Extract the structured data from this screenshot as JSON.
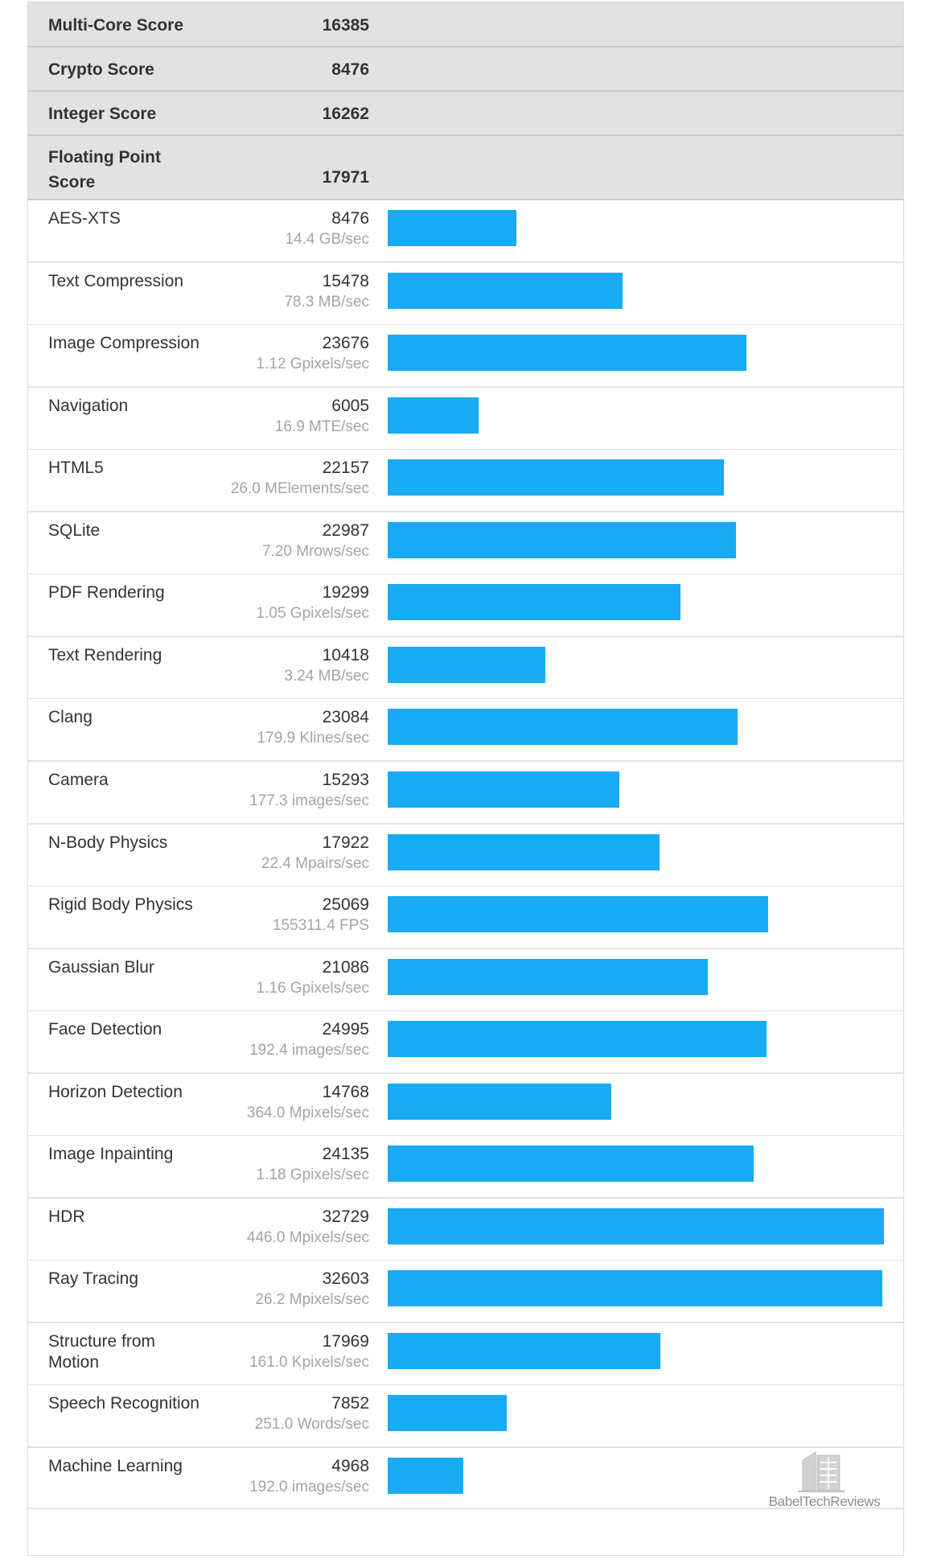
{
  "colors": {
    "bar": "#18aaf2",
    "header_bg": "#e2e2e2",
    "rate_text": "#a4a4a4"
  },
  "summary": [
    {
      "label": "Multi-Core Score",
      "value": "16385"
    },
    {
      "label": "Crypto Score",
      "value": "8476"
    },
    {
      "label": "Integer Score",
      "value": "16262"
    },
    {
      "label": "Floating Point Score",
      "value": "17971"
    }
  ],
  "benchmarks": [
    {
      "name": "AES-XTS",
      "score": "8476",
      "rate": "14.4 GB/sec"
    },
    {
      "name": "Text Compression",
      "score": "15478",
      "rate": "78.3 MB/sec"
    },
    {
      "name": "Image Compression",
      "score": "23676",
      "rate": "1.12 Gpixels/sec"
    },
    {
      "name": "Navigation",
      "score": "6005",
      "rate": "16.9 MTE/sec"
    },
    {
      "name": "HTML5",
      "score": "22157",
      "rate": "26.0 MElements/sec"
    },
    {
      "name": "SQLite",
      "score": "22987",
      "rate": "7.20 Mrows/sec"
    },
    {
      "name": "PDF Rendering",
      "score": "19299",
      "rate": "1.05 Gpixels/sec"
    },
    {
      "name": "Text Rendering",
      "score": "10418",
      "rate": "3.24 MB/sec"
    },
    {
      "name": "Clang",
      "score": "23084",
      "rate": "179.9 Klines/sec"
    },
    {
      "name": "Camera",
      "score": "15293",
      "rate": "177.3 images/sec"
    },
    {
      "name": "N-Body Physics",
      "score": "17922",
      "rate": "22.4 Mpairs/sec"
    },
    {
      "name": "Rigid Body Physics",
      "score": "25069",
      "rate": "155311.4 FPS"
    },
    {
      "name": "Gaussian Blur",
      "score": "21086",
      "rate": "1.16 Gpixels/sec"
    },
    {
      "name": "Face Detection",
      "score": "24995",
      "rate": "192.4 images/sec"
    },
    {
      "name": "Horizon Detection",
      "score": "14768",
      "rate": "364.0 Mpixels/sec"
    },
    {
      "name": "Image Inpainting",
      "score": "24135",
      "rate": "1.18 Gpixels/sec"
    },
    {
      "name": "HDR",
      "score": "32729",
      "rate": "446.0 Mpixels/sec"
    },
    {
      "name": "Ray Tracing",
      "score": "32603",
      "rate": "26.2 Mpixels/sec"
    },
    {
      "name": "Structure from Motion",
      "score": "17969",
      "rate": "161.0 Kpixels/sec"
    },
    {
      "name": "Speech Recognition",
      "score": "7852",
      "rate": "251.0 Words/sec"
    },
    {
      "name": "Machine Learning",
      "score": "4968",
      "rate": "192.0 images/sec"
    }
  ],
  "chart_data": {
    "type": "bar",
    "orientation": "horizontal",
    "categories": [
      "AES-XTS",
      "Text Compression",
      "Image Compression",
      "Navigation",
      "HTML5",
      "SQLite",
      "PDF Rendering",
      "Text Rendering",
      "Clang",
      "Camera",
      "N-Body Physics",
      "Rigid Body Physics",
      "Gaussian Blur",
      "Face Detection",
      "Horizon Detection",
      "Image Inpainting",
      "HDR",
      "Ray Tracing",
      "Structure from Motion",
      "Speech Recognition",
      "Machine Learning"
    ],
    "values": [
      8476,
      15478,
      23676,
      6005,
      22157,
      22987,
      19299,
      10418,
      23084,
      15293,
      17922,
      25069,
      21086,
      24995,
      14768,
      24135,
      32729,
      32603,
      17969,
      7852,
      4968
    ],
    "xlim": [
      0,
      32729
    ],
    "grid": false
  },
  "watermark": {
    "text": "BabelTechReviews"
  }
}
